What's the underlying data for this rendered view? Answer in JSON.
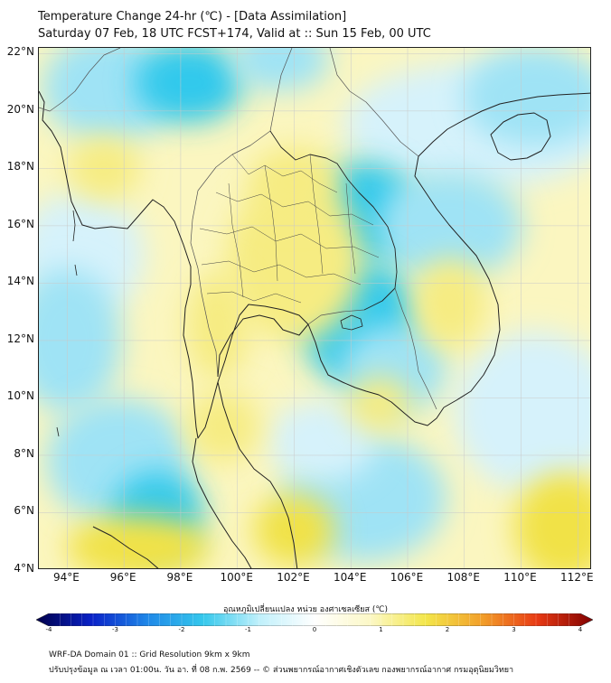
{
  "title_line1": "Temperature Change 24-hr (℃) - [Data Assimilation]",
  "title_line2": "Saturday 07 Feb, 18 UTC FCST+174, Valid at :: Sun 15 Feb, 00 UTC",
  "map": {
    "lon_range": [
      93,
      112.5
    ],
    "lat_range": [
      4,
      22.2
    ],
    "lat_ticks": [
      {
        "value": 22,
        "label": "22°N"
      },
      {
        "value": 20,
        "label": "20°N"
      },
      {
        "value": 18,
        "label": "18°N"
      },
      {
        "value": 16,
        "label": "16°N"
      },
      {
        "value": 14,
        "label": "14°N"
      },
      {
        "value": 12,
        "label": "12°N"
      },
      {
        "value": 10,
        "label": "10°N"
      },
      {
        "value": 8,
        "label": "8°N"
      },
      {
        "value": 6,
        "label": "6°N"
      },
      {
        "value": 4,
        "label": "4°N"
      }
    ],
    "lon_ticks": [
      {
        "value": 94,
        "label": "94°E"
      },
      {
        "value": 96,
        "label": "96°E"
      },
      {
        "value": 98,
        "label": "98°E"
      },
      {
        "value": 100,
        "label": "100°E"
      },
      {
        "value": 102,
        "label": "102°E"
      },
      {
        "value": 104,
        "label": "104°E"
      },
      {
        "value": 106,
        "label": "106°E"
      },
      {
        "value": 108,
        "label": "108°E"
      },
      {
        "value": 110,
        "label": "110°E"
      },
      {
        "value": 112,
        "label": "112°E"
      }
    ],
    "colors": {
      "cold_strong": "#33c9ec",
      "cold_mid": "#9fe3f5",
      "cold_light": "#d6f2fb",
      "warm_light": "#fbf6c0",
      "warm_mid": "#f6ec82",
      "warm_strong": "#f1e247",
      "coast": "#222222",
      "border": "#555555"
    }
  },
  "colorbar": {
    "label": "อุณหภูมิเปลี่ยนแปลง หน่วย องศาเซลเซียส (℃)",
    "range": [
      -4,
      4
    ],
    "ticks": [
      {
        "value": -4,
        "label": "-4"
      },
      {
        "value": -3,
        "label": "-3"
      },
      {
        "value": -2,
        "label": "-2"
      },
      {
        "value": -1,
        "label": "-1"
      },
      {
        "value": 0,
        "label": "0"
      },
      {
        "value": 1,
        "label": "1"
      },
      {
        "value": 2,
        "label": "2"
      },
      {
        "value": 3,
        "label": "3"
      },
      {
        "value": 4,
        "label": "4"
      }
    ],
    "stops": [
      "#00004a",
      "#0a22c8",
      "#1f88e8",
      "#35c8ec",
      "#bff0fb",
      "#ffffff",
      "#fcf8c6",
      "#f3e64a",
      "#f2a02a",
      "#e83a14",
      "#800000"
    ]
  },
  "footer_line1": "WRF-DA Domain 01 :: Grid Resolution 9km x 9km",
  "footer_line2": "ปรับปรุงข้อมูล ณ เวลา 01:00น. วัน อา. ที่ 08 ก.พ. 2569 -- © ส่วนพยากรณ์อากาศเชิงตัวเลข กองพยากรณ์อากาศ กรมอุตุนิยมวิทยา"
}
